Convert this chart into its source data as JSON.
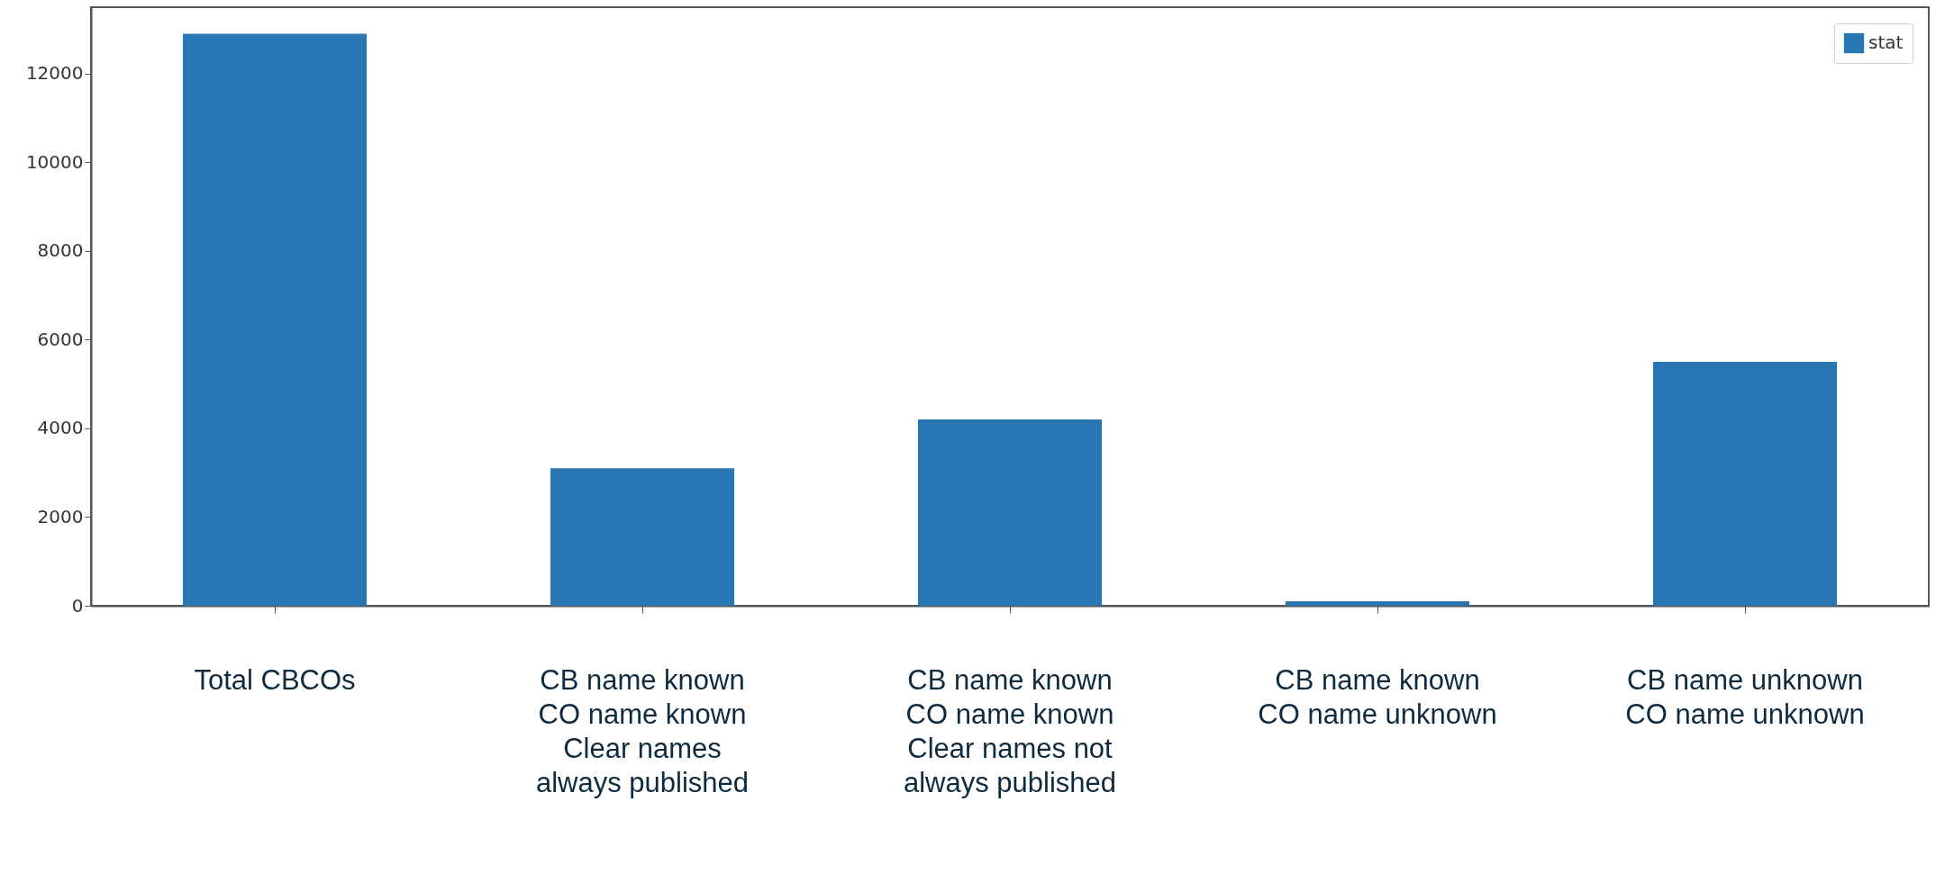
{
  "chart_data": {
    "type": "bar",
    "categories": [
      "Total CBCOs",
      "CB name known\nCO name known\nClear names\nalways published",
      "CB name known\nCO name known\nClear names not\nalways published",
      "CB name known\nCO name unknown",
      "CB name unknown\nCO name unknown"
    ],
    "series": [
      {
        "name": "stat",
        "color": "#2876b3",
        "values": [
          12900,
          3100,
          4200,
          100,
          5500
        ]
      }
    ],
    "ylim": [
      0,
      13500
    ],
    "yticks": [
      0,
      2000,
      4000,
      6000,
      8000,
      10000,
      12000
    ],
    "grid": false,
    "legend": "top right"
  }
}
